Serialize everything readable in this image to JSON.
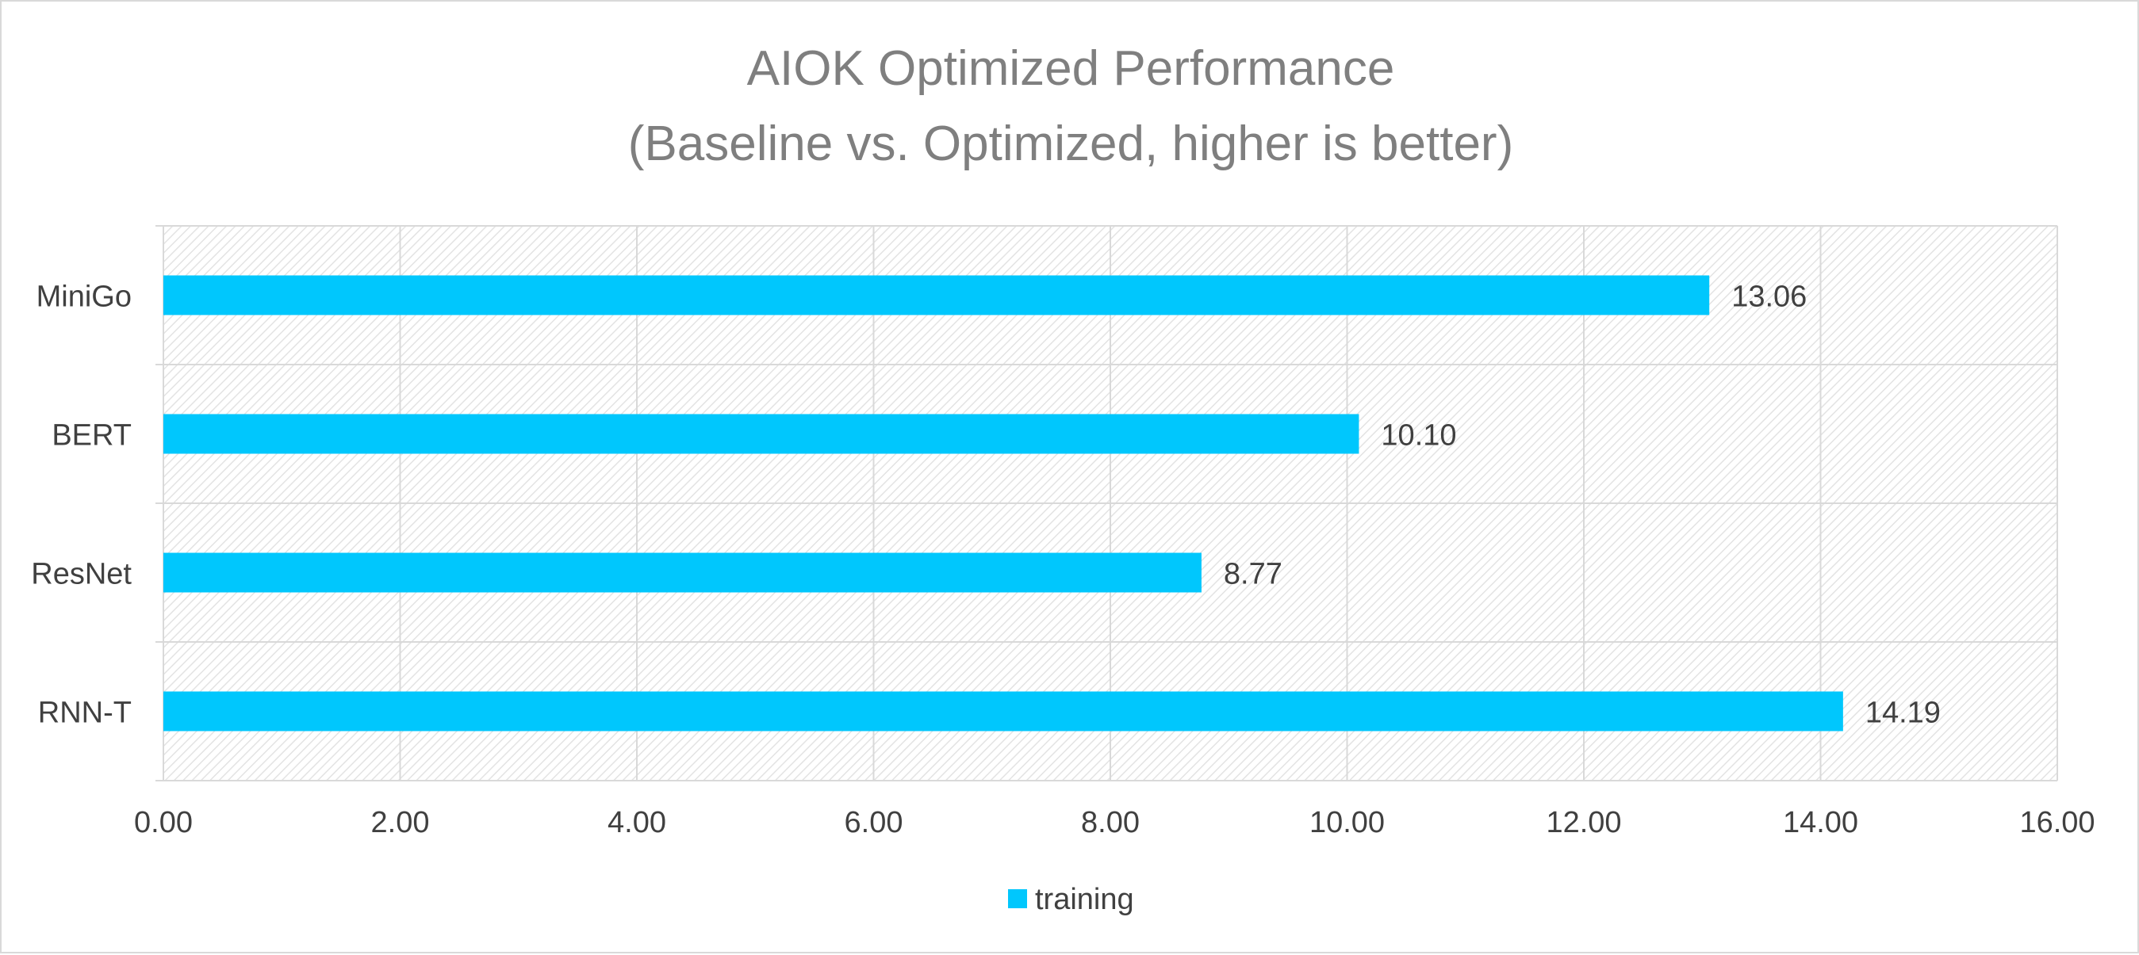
{
  "chart_data": {
    "type": "bar",
    "orientation": "horizontal",
    "title": "AIOK Optimized Performance",
    "subtitle": "(Baseline vs. Optimized, higher is better)",
    "categories": [
      "MiniGo",
      "BERT",
      "ResNet",
      "RNN-T"
    ],
    "series": [
      {
        "name": "training",
        "color": "#00c7fd",
        "values": [
          13.06,
          10.1,
          8.77,
          14.19
        ],
        "labels": [
          "13.06",
          "10.10",
          "8.77",
          "14.19"
        ]
      }
    ],
    "xlim": [
      0,
      16
    ],
    "x_ticks": [
      0,
      2,
      4,
      6,
      8,
      10,
      12,
      14,
      16
    ],
    "x_tick_labels": [
      "0.00",
      "2.00",
      "4.00",
      "6.00",
      "8.00",
      "10.00",
      "12.00",
      "14.00",
      "16.00"
    ],
    "xlabel": "",
    "ylabel": "",
    "grid": true,
    "plot_background": "hatched",
    "legend_position": "bottom"
  }
}
